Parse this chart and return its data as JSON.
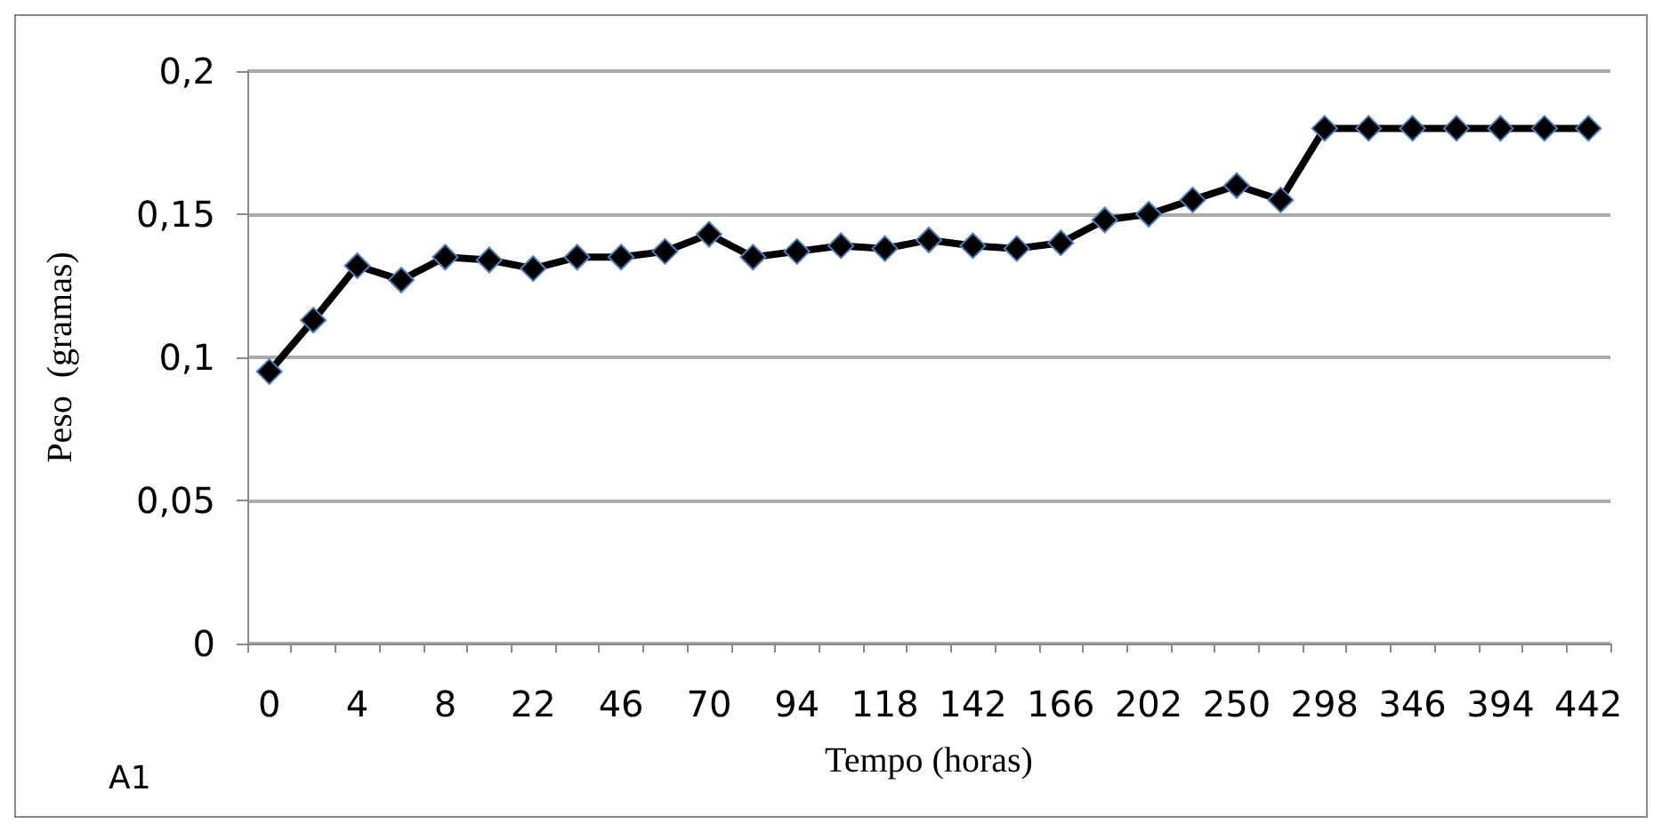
{
  "chart_data": {
    "type": "line",
    "xlabel": "Tempo (horas)",
    "ylabel": "Peso  (gramas)",
    "annotations": [
      "A1"
    ],
    "categories": [
      "0",
      null,
      "4",
      null,
      "8",
      null,
      "22",
      null,
      "46",
      null,
      "70",
      null,
      "94",
      null,
      "118",
      null,
      "142",
      null,
      "166",
      null,
      "202",
      null,
      "250",
      null,
      "298",
      null,
      "346",
      null,
      "394",
      null,
      "442"
    ],
    "series": [
      {
        "color": "#000000",
        "values": [
          0.095,
          0.113,
          0.132,
          0.127,
          0.135,
          0.134,
          0.131,
          0.135,
          0.135,
          0.137,
          0.143,
          0.135,
          0.137,
          0.139,
          0.138,
          0.141,
          0.139,
          0.138,
          0.14,
          0.148,
          0.15,
          0.155,
          0.16,
          0.155,
          0.18,
          0.18,
          0.18,
          0.18,
          0.18,
          0.18,
          0.18
        ]
      }
    ],
    "ylim": [
      0,
      0.2
    ],
    "yticks": [
      0,
      {
        "value": 0.05,
        "label": "0,05"
      },
      {
        "value": 0.1,
        "label": "0,1"
      },
      {
        "value": 0.15,
        "label": "0,15"
      },
      {
        "value": 0.2,
        "label": "0,2"
      }
    ],
    "grid": "y",
    "marker": "diamond",
    "line_style": "solid"
  }
}
